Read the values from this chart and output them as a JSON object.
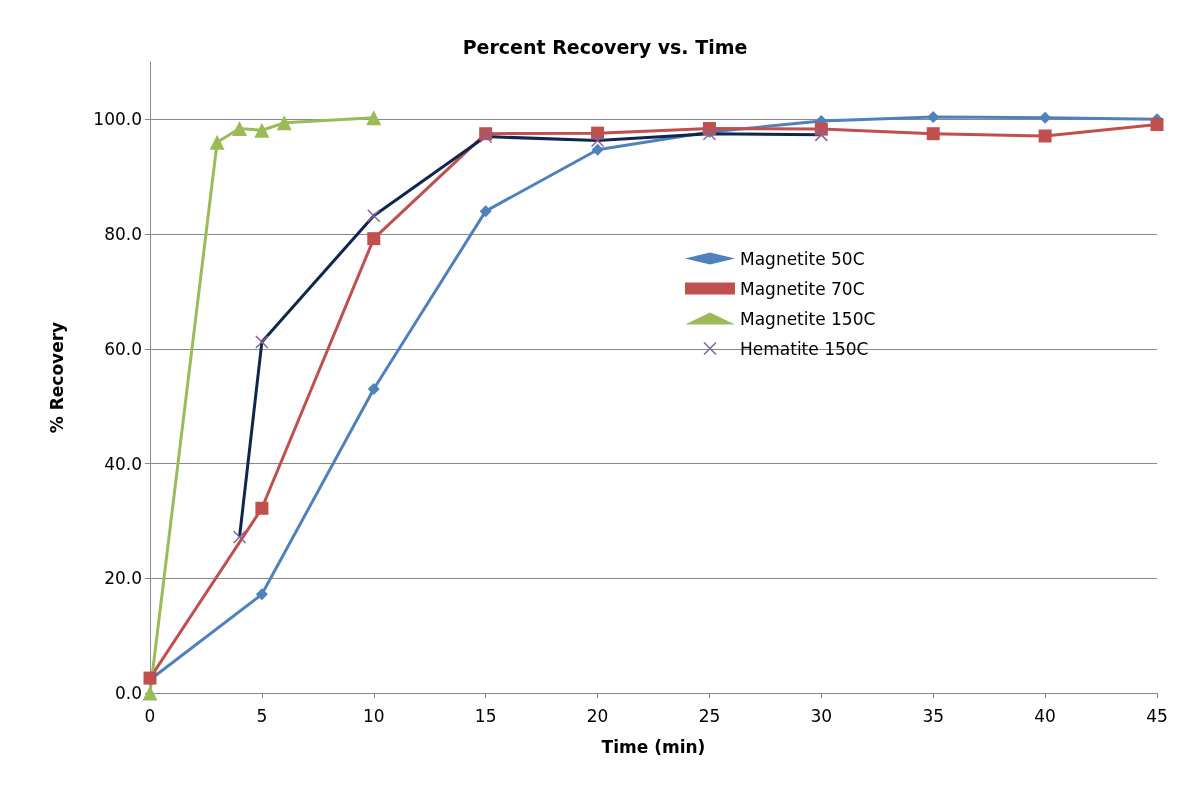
{
  "chart_data": {
    "type": "line",
    "title": "Percent Recovery vs. Time",
    "xlabel": "Time (min)",
    "ylabel": "% Recovery",
    "xlim": [
      0,
      45
    ],
    "xticks": [
      0,
      5,
      10,
      15,
      20,
      25,
      30,
      35,
      40,
      45
    ],
    "ylim": [
      0,
      110
    ],
    "yticks": [
      {
        "value": 0,
        "label": "0.0"
      },
      {
        "value": 20,
        "label": "20.0"
      },
      {
        "value": 40,
        "label": "40.0"
      },
      {
        "value": 60,
        "label": "60.0"
      },
      {
        "value": 80,
        "label": "80.0"
      },
      {
        "value": 100,
        "label": "100.0"
      }
    ],
    "grid": "y",
    "legend": "right",
    "line_style": "solid",
    "series": [
      {
        "name": "Magnetite 50C",
        "color": "#4f81bd",
        "marker": "diamond",
        "x": [
          0,
          5,
          10,
          15,
          20,
          25,
          30,
          35,
          40,
          45
        ],
        "values": [
          2.3,
          17.2,
          53,
          84,
          94.7,
          97.8,
          99.7,
          100.4,
          100.3,
          100
        ]
      },
      {
        "name": "Magnetite 70C",
        "color": "#c0504d",
        "marker": "square",
        "x": [
          0,
          5,
          10,
          15,
          20,
          25,
          30,
          35,
          40,
          45
        ],
        "values": [
          2.6,
          32.2,
          79.2,
          97.5,
          97.6,
          98.4,
          98.3,
          97.5,
          97.1,
          99.1
        ]
      },
      {
        "name": "Magnetite 150C",
        "color": "#9bbb59",
        "marker": "triangle",
        "x": [
          0,
          3,
          4,
          5,
          6,
          10
        ],
        "values": [
          0,
          96,
          98.4,
          98.1,
          99.4,
          100.3
        ]
      },
      {
        "name": "Hematite 150C",
        "color": "#10264f",
        "marker": "cross",
        "x": [
          4,
          5,
          10,
          15,
          20,
          25,
          30
        ],
        "values": [
          27.2,
          61.2,
          83.2,
          97,
          96.3,
          97.5,
          97.3
        ]
      }
    ]
  }
}
